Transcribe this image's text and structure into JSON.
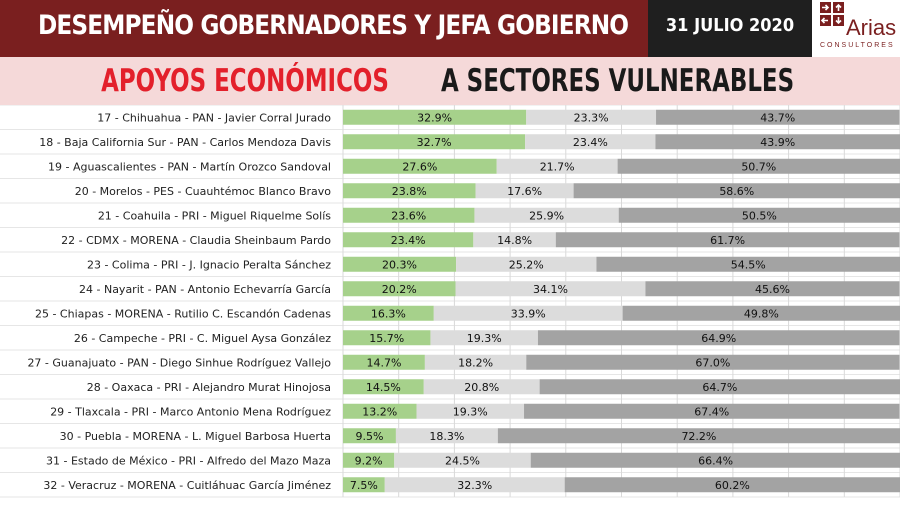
{
  "header": {
    "title": "DESEMPEÑO GOBERNADORES Y JEFA GOBIERNO",
    "date": "31 JULIO 2020",
    "logo_name": "Arias",
    "logo_sub": "CONSULTORES"
  },
  "subtitle": {
    "highlight": "APOYOS ECONÓMICOS",
    "rest": " A SECTORES VULNERABLES"
  },
  "colors": {
    "header_bg": "#7a1f1f",
    "date_bg": "#1f1f1f",
    "subtitle_band": "#f5d9d9",
    "subtitle_red": "#e3202b",
    "seg1": "#a6d18b",
    "seg2": "#dcdcdc",
    "seg3": "#a3a3a3"
  },
  "chart_data": {
    "type": "bar",
    "stacked": true,
    "orientation": "horizontal",
    "categories": [
      "17 - Chihuahua - PAN - Javier Corral Jurado",
      "18 - Baja California Sur - PAN  - Carlos Mendoza Davis",
      "19 - Aguascalientes - PAN - Martín Orozco Sandoval",
      "20 - Morelos - PES - Cuauhtémoc Blanco Bravo",
      "21 - Coahuila - PRI - Miguel Riquelme Solís",
      "22 - CDMX - MORENA - Claudia Sheinbaum Pardo",
      "23 - Colima - PRI - J. Ignacio Peralta Sánchez",
      "24 - Nayarit - PAN - Antonio Echevarría García",
      "25 - Chiapas - MORENA - Rutilio C. Escandón Cadenas",
      "26 - Campeche - PRI - C. Miguel Aysa González",
      "27 - Guanajuato - PAN - Diego Sinhue Rodríguez Vallejo",
      "28 - Oaxaca - PRI - Alejandro Murat Hinojosa",
      "29 - Tlaxcala - PRI - Marco Antonio Mena Rodríguez",
      "30 - Puebla - MORENA - L. Miguel Barbosa Huerta",
      "31 - Estado de México - PRI - Alfredo del Mazo Maza",
      "32 - Veracruz - MORENA - Cuitláhuac García Jiménez"
    ],
    "series": [
      {
        "values": [
          32.9,
          32.7,
          27.6,
          23.8,
          23.6,
          23.4,
          20.3,
          20.2,
          16.3,
          15.7,
          14.7,
          14.5,
          13.2,
          9.5,
          9.2,
          7.5
        ],
        "labels": [
          "32.9%",
          "32.7%",
          "27.6%",
          "23.8%",
          "23.6%",
          "23.4%",
          "20.3%",
          "20.2%",
          "16.3%",
          "15.7%",
          "14.7%",
          "14.5%",
          "13.2%",
          "9.5%",
          "9.2%",
          "7.5%"
        ]
      },
      {
        "values": [
          23.3,
          23.4,
          21.7,
          17.6,
          25.9,
          14.8,
          25.2,
          34.1,
          33.9,
          19.3,
          18.2,
          20.8,
          19.3,
          18.3,
          24.5,
          32.3
        ],
        "labels": [
          "23.3%",
          "23.4%",
          "21.7%",
          "17.6%",
          "25.9%",
          "14.8%",
          "25.2%",
          "34.1%",
          "33.9%",
          "19.3%",
          "18.2%",
          "20.8%",
          "19.3%",
          "18.3%",
          "24.5%",
          "32.3%"
        ]
      },
      {
        "values": [
          43.7,
          43.9,
          50.7,
          58.6,
          50.5,
          61.7,
          54.5,
          45.6,
          49.8,
          64.9,
          67.0,
          64.7,
          67.4,
          72.2,
          66.4,
          60.2
        ],
        "labels": [
          "43.7%",
          "43.9%",
          "50.7%",
          "58.6%",
          "50.5%",
          "61.7%",
          "54.5%",
          "45.6%",
          "49.8%",
          "64.9%",
          "67.0%",
          "64.7%",
          "67.4%",
          "72.2%",
          "66.4%",
          "60.2%"
        ]
      }
    ],
    "xlim": [
      0,
      100
    ],
    "grid": true
  }
}
